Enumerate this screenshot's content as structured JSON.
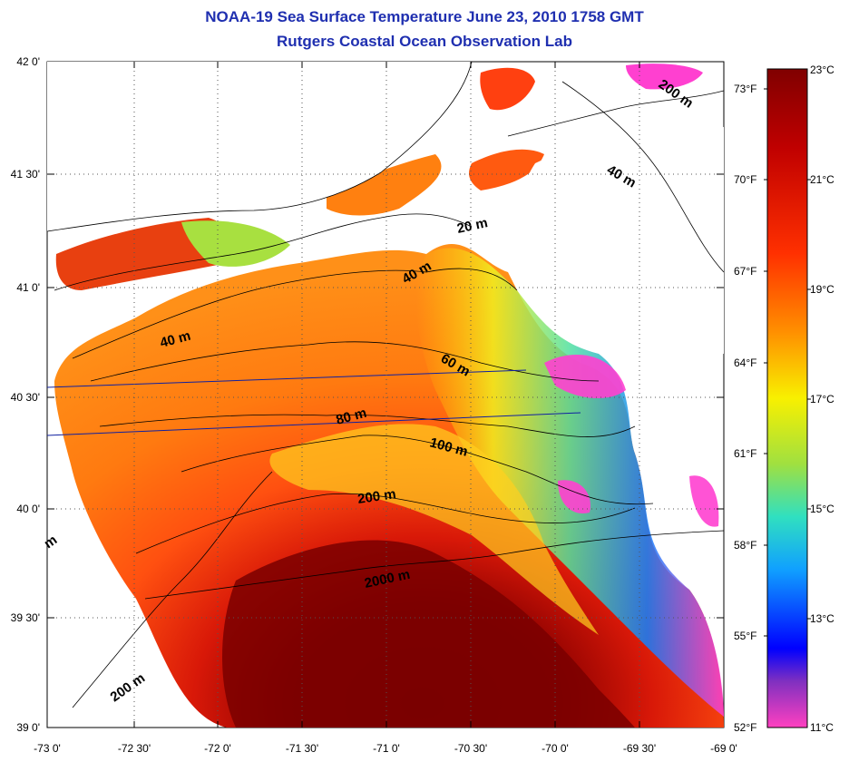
{
  "title": "NOAA-19 Sea Surface Temperature June 23, 2010 1758 GMT",
  "subtitle": "Rutgers Coastal Ocean Observation Lab",
  "lat_labels": [
    "42 0'",
    "41 30'",
    "41 0'",
    "40 30'",
    "40 0'",
    "39 30'",
    "39 0'"
  ],
  "lon_labels": [
    "-73 0'",
    "-72 30'",
    "-72 0'",
    "-71 30'",
    "-71 0'",
    "-70 30'",
    "-70 0'",
    "-69 30'",
    "-69 0'"
  ],
  "fahrenheit_labels": [
    "73°F",
    "70°F",
    "67°F",
    "64°F",
    "61°F",
    "58°F",
    "55°F",
    "52°F"
  ],
  "celsius_labels": [
    "23°C",
    "21°C",
    "19°C",
    "17°C",
    "15°C",
    "13°C",
    "11°C"
  ],
  "isobath_labels": [
    "200 m",
    "40 m",
    "20 m",
    "40 m",
    "40 m",
    "60 m",
    "80 m",
    "100 m",
    "200 m",
    "2000 m",
    "200 m",
    "m"
  ],
  "colors": {
    "title": "#1f2fb0",
    "scale_top": "#800000",
    "scale_bottom": "#ff40c0"
  }
}
